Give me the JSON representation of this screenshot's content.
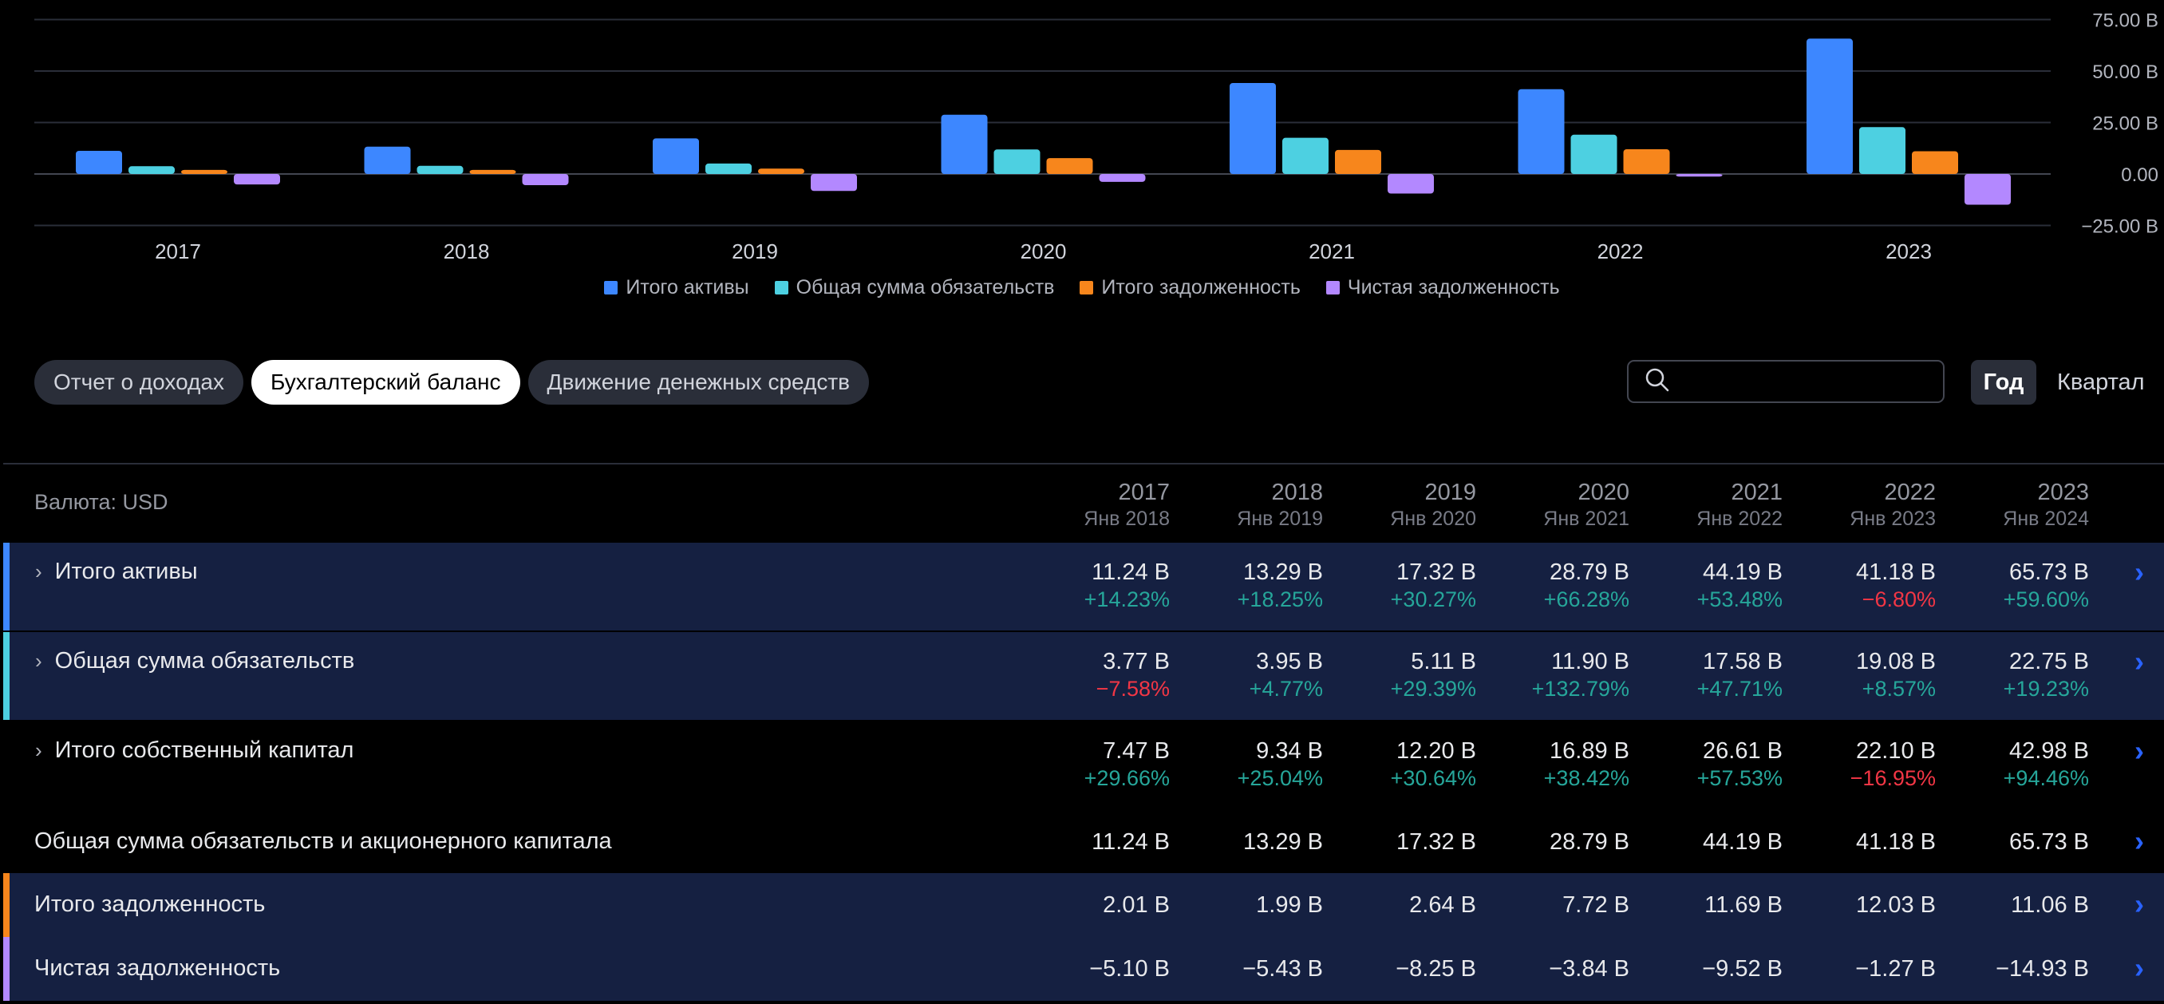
{
  "chart_data": {
    "type": "bar",
    "categories": [
      "2017",
      "2018",
      "2019",
      "2020",
      "2021",
      "2022",
      "2023"
    ],
    "series": [
      {
        "name": "Итого активы",
        "color": "#3d87ff",
        "values": [
          11.24,
          13.29,
          17.32,
          28.79,
          44.19,
          41.18,
          65.73
        ]
      },
      {
        "name": "Общая сумма обязательств",
        "color": "#4dd0e1",
        "values": [
          3.77,
          3.95,
          5.11,
          11.9,
          17.58,
          19.08,
          22.75
        ]
      },
      {
        "name": "Итого задолженность",
        "color": "#f7861c",
        "values": [
          2.01,
          1.99,
          2.64,
          7.72,
          11.69,
          12.03,
          11.06
        ]
      },
      {
        "name": "Чистая задолженность",
        "color": "#b388ff",
        "values": [
          -5.1,
          -5.43,
          -8.25,
          -3.84,
          -9.52,
          -1.27,
          -14.93
        ]
      }
    ],
    "y_ticks": [
      "75.00 B",
      "50.00 B",
      "25.00 B",
      "0.00",
      "−25.00 B"
    ],
    "ylim": [
      -25,
      75
    ],
    "grid": true,
    "legend": "bottom"
  },
  "tabs": [
    {
      "label": "Отчет о доходах"
    },
    {
      "label": "Бухгалтерский баланс"
    },
    {
      "label": "Движение денежных средств"
    }
  ],
  "search": {
    "placeholder": ""
  },
  "period": {
    "year": "Год",
    "quarter": "Квартал"
  },
  "table": {
    "currency_label": "Валюта: USD",
    "columns": [
      {
        "year": "2017",
        "period": "Янв 2018"
      },
      {
        "year": "2018",
        "period": "Янв 2019"
      },
      {
        "year": "2019",
        "period": "Янв 2020"
      },
      {
        "year": "2020",
        "period": "Янв 2021"
      },
      {
        "year": "2021",
        "period": "Янв 2022"
      },
      {
        "year": "2022",
        "period": "Янв 2023"
      },
      {
        "year": "2023",
        "period": "Янв 2024"
      }
    ],
    "rows": [
      {
        "label": "Итого активы",
        "expandable": true,
        "highlight": true,
        "bar_color": "#3d87ff",
        "values": [
          "11.24 B",
          "13.29 B",
          "17.32 B",
          "28.79 B",
          "44.19 B",
          "41.18 B",
          "65.73 B"
        ],
        "changes": [
          "+14.23%",
          "+18.25%",
          "+30.27%",
          "+66.28%",
          "+53.48%",
          "−6.80%",
          "+59.60%"
        ]
      },
      {
        "label": "Общая сумма обязательств",
        "expandable": true,
        "highlight": true,
        "bar_color": "#4dd0e1",
        "values": [
          "3.77 B",
          "3.95 B",
          "5.11 B",
          "11.90 B",
          "17.58 B",
          "19.08 B",
          "22.75 B"
        ],
        "changes": [
          "−7.58%",
          "+4.77%",
          "+29.39%",
          "+132.79%",
          "+47.71%",
          "+8.57%",
          "+19.23%"
        ]
      },
      {
        "label": "Итого собственный капитал",
        "expandable": true,
        "highlight": false,
        "bar_color": "",
        "values": [
          "7.47 B",
          "9.34 B",
          "12.20 B",
          "16.89 B",
          "26.61 B",
          "22.10 B",
          "42.98 B"
        ],
        "changes": [
          "+29.66%",
          "+25.04%",
          "+30.64%",
          "+38.42%",
          "+57.53%",
          "−16.95%",
          "+94.46%"
        ]
      },
      {
        "label": "Общая сумма обязательств и акционерного капитала",
        "expandable": false,
        "highlight": false,
        "bar_color": "",
        "values": [
          "11.24 B",
          "13.29 B",
          "17.32 B",
          "28.79 B",
          "44.19 B",
          "41.18 B",
          "65.73 B"
        ],
        "changes": []
      },
      {
        "label": "Итого задолженность",
        "expandable": false,
        "highlight": true,
        "bar_color": "#f7861c",
        "values": [
          "2.01 B",
          "1.99 B",
          "2.64 B",
          "7.72 B",
          "11.69 B",
          "12.03 B",
          "11.06 B"
        ],
        "changes": []
      },
      {
        "label": "Чистая задолженность",
        "expandable": false,
        "highlight": true,
        "bar_color": "#b388ff",
        "values": [
          "−5.10 B",
          "−5.43 B",
          "−8.25 B",
          "−3.84 B",
          "−9.52 B",
          "−1.27 B",
          "−14.93 B"
        ],
        "changes": []
      }
    ]
  }
}
